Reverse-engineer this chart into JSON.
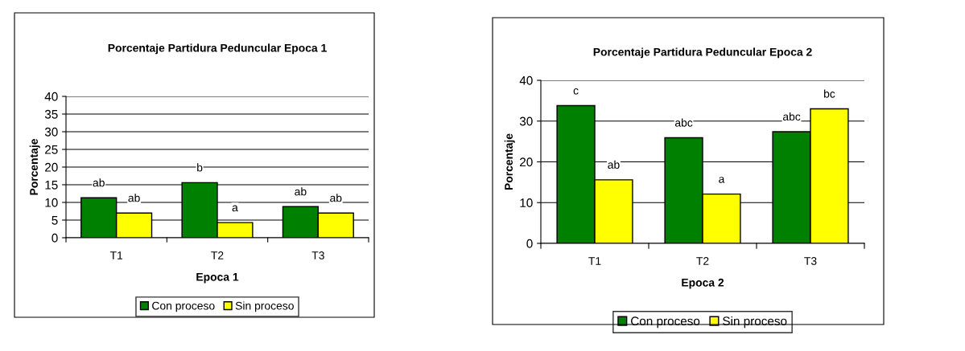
{
  "chart_data": [
    {
      "type": "bar",
      "title": "Porcentaje Partidura Peduncular Epoca 1",
      "xlabel": "Epoca 1",
      "ylabel": "Porcentaje",
      "categories": [
        "T1",
        "T2",
        "T3"
      ],
      "series": [
        {
          "name": "Con proceso",
          "color": "#008000",
          "values": [
            11.3,
            15.6,
            8.8
          ]
        },
        {
          "name": "Sin proceso",
          "color": "#ffff00",
          "values": [
            7.0,
            4.3,
            7.0
          ]
        }
      ],
      "ylim": [
        0,
        40
      ],
      "yticks": [
        0,
        5,
        10,
        15,
        20,
        25,
        30,
        35,
        40
      ],
      "grid": "y",
      "legend": "bottom",
      "annotations": [
        {
          "text": "ab",
          "x": "T1",
          "y": 11.3
        },
        {
          "text": "ab",
          "x": "T1",
          "y": 7.0
        },
        {
          "text": "b",
          "x": "T2",
          "y": 15.6
        },
        {
          "text": "a",
          "x": "T2",
          "y": 4.3
        },
        {
          "text": "ab",
          "x": "T3",
          "y": 8.8
        },
        {
          "text": "ab",
          "x": "T3",
          "y": 7.0
        }
      ]
    },
    {
      "type": "bar",
      "title": "Porcentaje Partidura Peduncular Epoca 2",
      "xlabel": "Epoca 2",
      "ylabel": "Porcentaje",
      "categories": [
        "T1",
        "T2",
        "T3"
      ],
      "series": [
        {
          "name": "Con proceso",
          "color": "#008000",
          "values": [
            33.8,
            25.9,
            27.4
          ]
        },
        {
          "name": "Sin proceso",
          "color": "#ffff00",
          "values": [
            15.6,
            12.1,
            33.0
          ]
        }
      ],
      "ylim": [
        0,
        40
      ],
      "yticks": [
        0,
        10,
        20,
        30,
        40
      ],
      "grid": "y",
      "legend": "bottom",
      "annotations": [
        {
          "text": "c",
          "x": "T1",
          "y": 33.8
        },
        {
          "text": "ab",
          "x": "T1",
          "y": 15.6
        },
        {
          "text": "abc",
          "x": "T2",
          "y": 25.9
        },
        {
          "text": "a",
          "x": "T2",
          "y": 12.1
        },
        {
          "text": "abc",
          "x": "T3",
          "y": 27.4
        },
        {
          "text": "bc",
          "x": "T3",
          "y": 33.0
        }
      ]
    }
  ]
}
